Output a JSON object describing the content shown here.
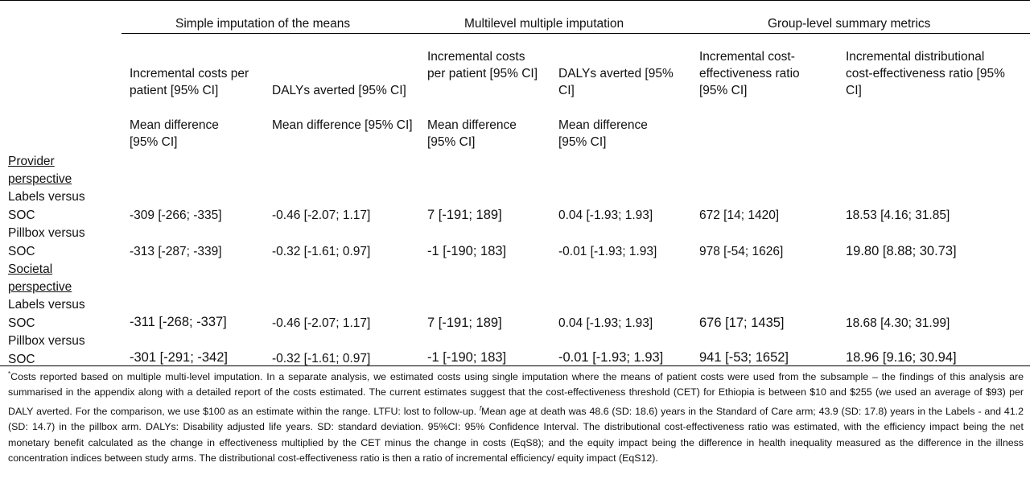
{
  "groups": {
    "simple": "Simple imputation of the means",
    "multilevel": "Multilevel multiple imputation",
    "summary": "Group-level summary metrics"
  },
  "subheaders": {
    "s_costs": "Incremental costs per patient  [95% CI]",
    "s_dalys": "DALYs averted [95% CI]",
    "m_costs": "Incremental costs per patient  [95% CI]",
    "m_dalys": "DALYs averted [95% CI]",
    "icer": "Incremental cost-effectiveness ratio [95% CI]",
    "idcer": "Incremental distributional cost-effectiveness ratio [95% CI]"
  },
  "meandiff": {
    "s_costs": "Mean difference [95% CI]",
    "s_dalys": "Mean difference [95% CI]",
    "m_costs": "Mean difference [95% CI]",
    "m_dalys": "Mean difference [95% CI]"
  },
  "sections": {
    "provider": {
      "line1": "Provider",
      "line2": "perspective"
    },
    "societal": {
      "line1": "Societal",
      "line2": "perspective"
    }
  },
  "rows": [
    {
      "label1": "Labels versus",
      "label2": "SOC",
      "s_costs": "-309 [-266; -335]",
      "s_dalys": "-0.46 [-2.07; 1.17]",
      "m_costs": "7 [-191; 189]",
      "m_dalys": "0.04 [-1.93; 1.93]",
      "icer": "672 [14; 1420]",
      "idcer": "18.53 [4.16; 31.85]"
    },
    {
      "label1": "Pillbox versus",
      "label2": "SOC",
      "s_costs": "-313 [-287; -339]",
      "s_dalys": "-0.32 [-1.61; 0.97]",
      "m_costs": "-1 [-190; 183]",
      "m_dalys": "-0.01 [-1.93; 1.93]",
      "icer": "978 [-54; 1626]",
      "idcer": "19.80 [8.88; 30.73]"
    },
    {
      "label1": "Labels versus",
      "label2": "SOC",
      "s_costs": "-311 [-268; -337]",
      "s_dalys": "-0.46 [-2.07; 1.17]",
      "m_costs": "7 [-191; 189]",
      "m_dalys": "0.04 [-1.93; 1.93]",
      "icer": "676 [17; 1435]",
      "idcer": "18.68 [4.30; 31.99]"
    },
    {
      "label1": "Pillbox versus",
      "label2": "SOC",
      "s_costs": "-301 [-291; -342]",
      "s_dalys": "-0.32 [-1.61; 0.97]",
      "m_costs": "-1 [-190; 183]",
      "m_dalys": "-0.01 [-1.93; 1.93]",
      "icer": "941 [-53; 1652]",
      "idcer": "18.96 [9.16; 30.94]"
    }
  ],
  "footnote": {
    "star": "*",
    "part1": "Costs reported based on multiple multi-level imputation. In a separate analysis, we estimated costs using single imputation where the means of patient costs were used from the subsample – the findings of this analysis are summarised in the appendix along with a detailed report of the costs estimated. The current estimates suggest that the cost-effectiveness threshold (CET) for Ethiopia is between $10 and $255 (we used an average of $93) per DALY averted. For the comparison, we use $100 as an estimate within the range. LTFU: lost to follow-up. ",
    "dagger": "f",
    "part2": "Mean age at death was 48.6 (SD: 18.6) years in the Standard of Care arm; 43.9 (SD: 17.8) years in the Labels - and 41.2 (SD: 14.7) in the pillbox arm. DALYs: Disability adjusted life years. SD: standard deviation. 95%CI: 95% Confidence Interval. The distributional cost-effectiveness ratio was estimated, with the efficiency impact being the net monetary benefit calculated as the change in effectiveness multiplied by the CET minus the change in costs (EqS8); and the equity impact being the difference in health inequality measured as the difference in the illness concentration indices between study arms. The distributional cost-effectiveness ratio is then a ratio of incremental efficiency/ equity impact (EqS12)."
  }
}
